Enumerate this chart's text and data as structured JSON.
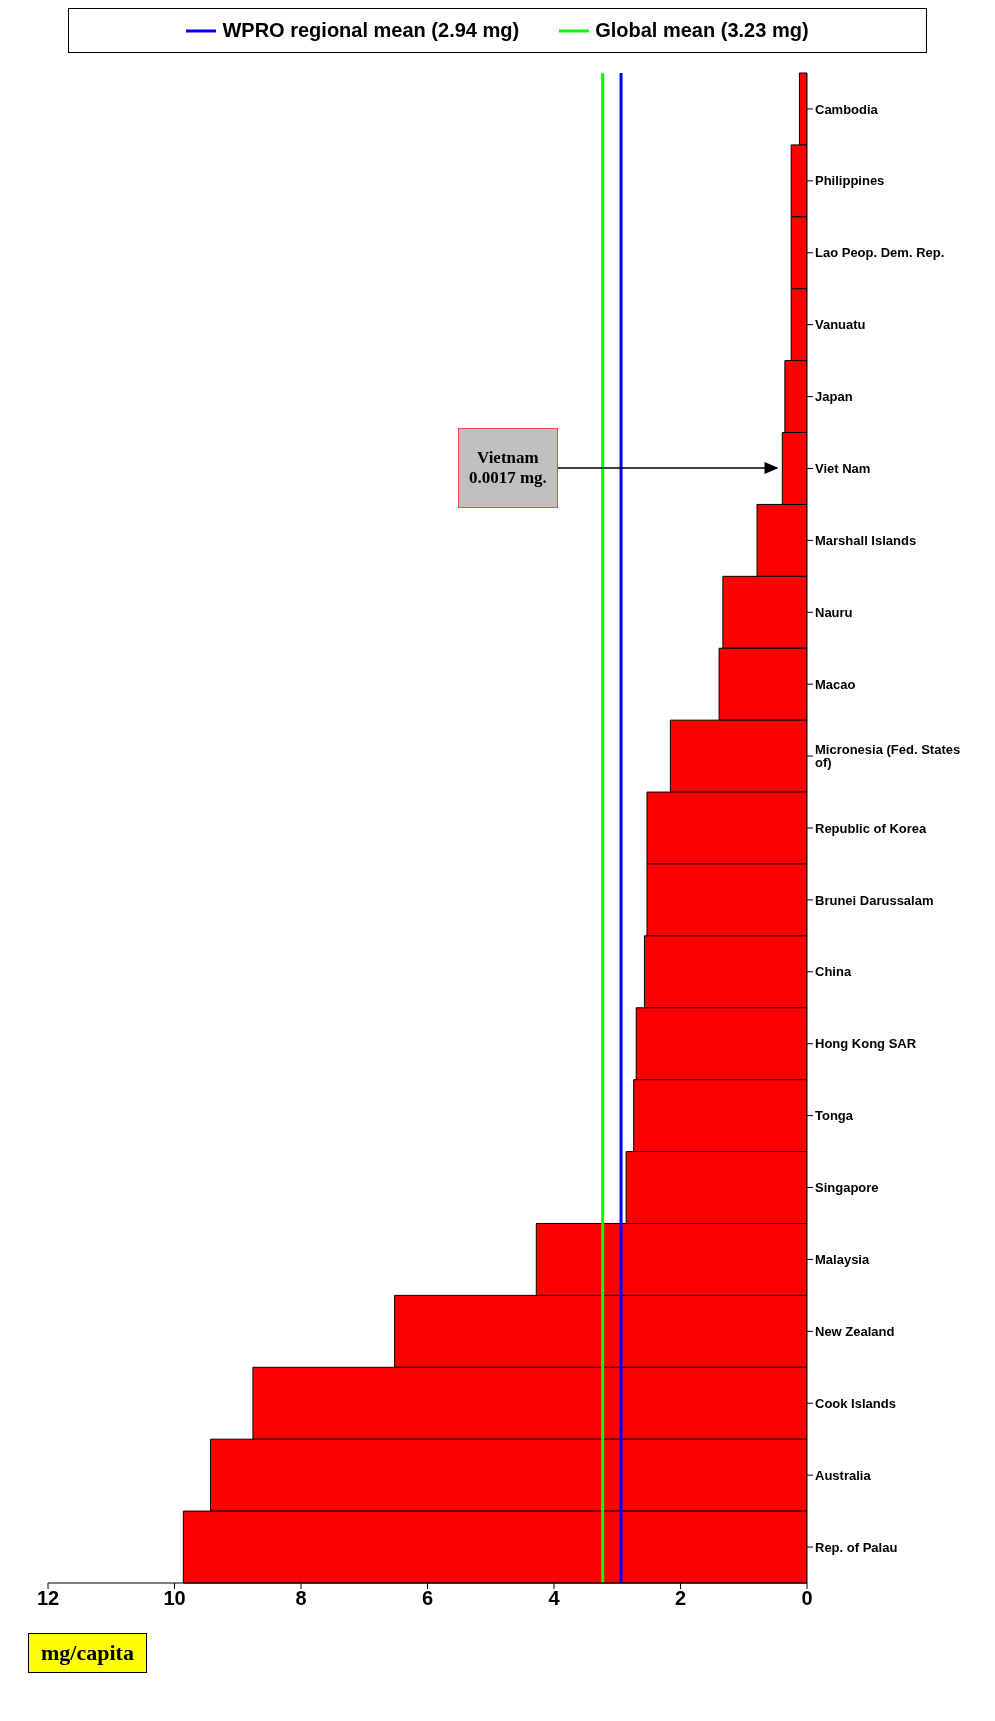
{
  "chart_data": {
    "type": "bar",
    "orientation": "horizontal",
    "xlabel": "mg/capita",
    "legend": "top",
    "categories": [
      "Cambodia",
      "Philippines",
      "Lao Peop. Dem. Rep.",
      "Vanuatu",
      "Japan",
      "Viet Nam",
      "Marshall Islands",
      "Nauru",
      "Macao",
      "Micronesia (Fed. States of)",
      "Republic of Korea",
      "Brunei Darussalam",
      "China",
      "Hong Kong SAR",
      "Tonga",
      "Singapore",
      "Malaysia",
      "New Zealand",
      "Cook Islands",
      "Australia",
      "Rep. of Palau"
    ],
    "values": [
      0.12,
      0.25,
      0.25,
      0.25,
      0.35,
      0.39,
      0.79,
      1.33,
      1.39,
      2.16,
      2.53,
      2.53,
      2.57,
      2.7,
      2.74,
      2.86,
      4.28,
      6.52,
      8.76,
      9.43,
      9.86
    ],
    "color": "#ff0000",
    "xlim": [
      12,
      0
    ],
    "xticks": [
      0,
      2,
      4,
      6,
      8,
      10,
      12
    ],
    "ref_lines": [
      {
        "axis": "x",
        "value": 2.94,
        "label": "WPRO regional mean (2.94 mg)",
        "color": "#0000ff"
      },
      {
        "axis": "x",
        "value": 3.23,
        "label": "Global mean (3.23 mg)",
        "color": "#00ff00"
      }
    ],
    "annotations": [
      "Vietnam 0.0017 mg."
    ]
  }
}
